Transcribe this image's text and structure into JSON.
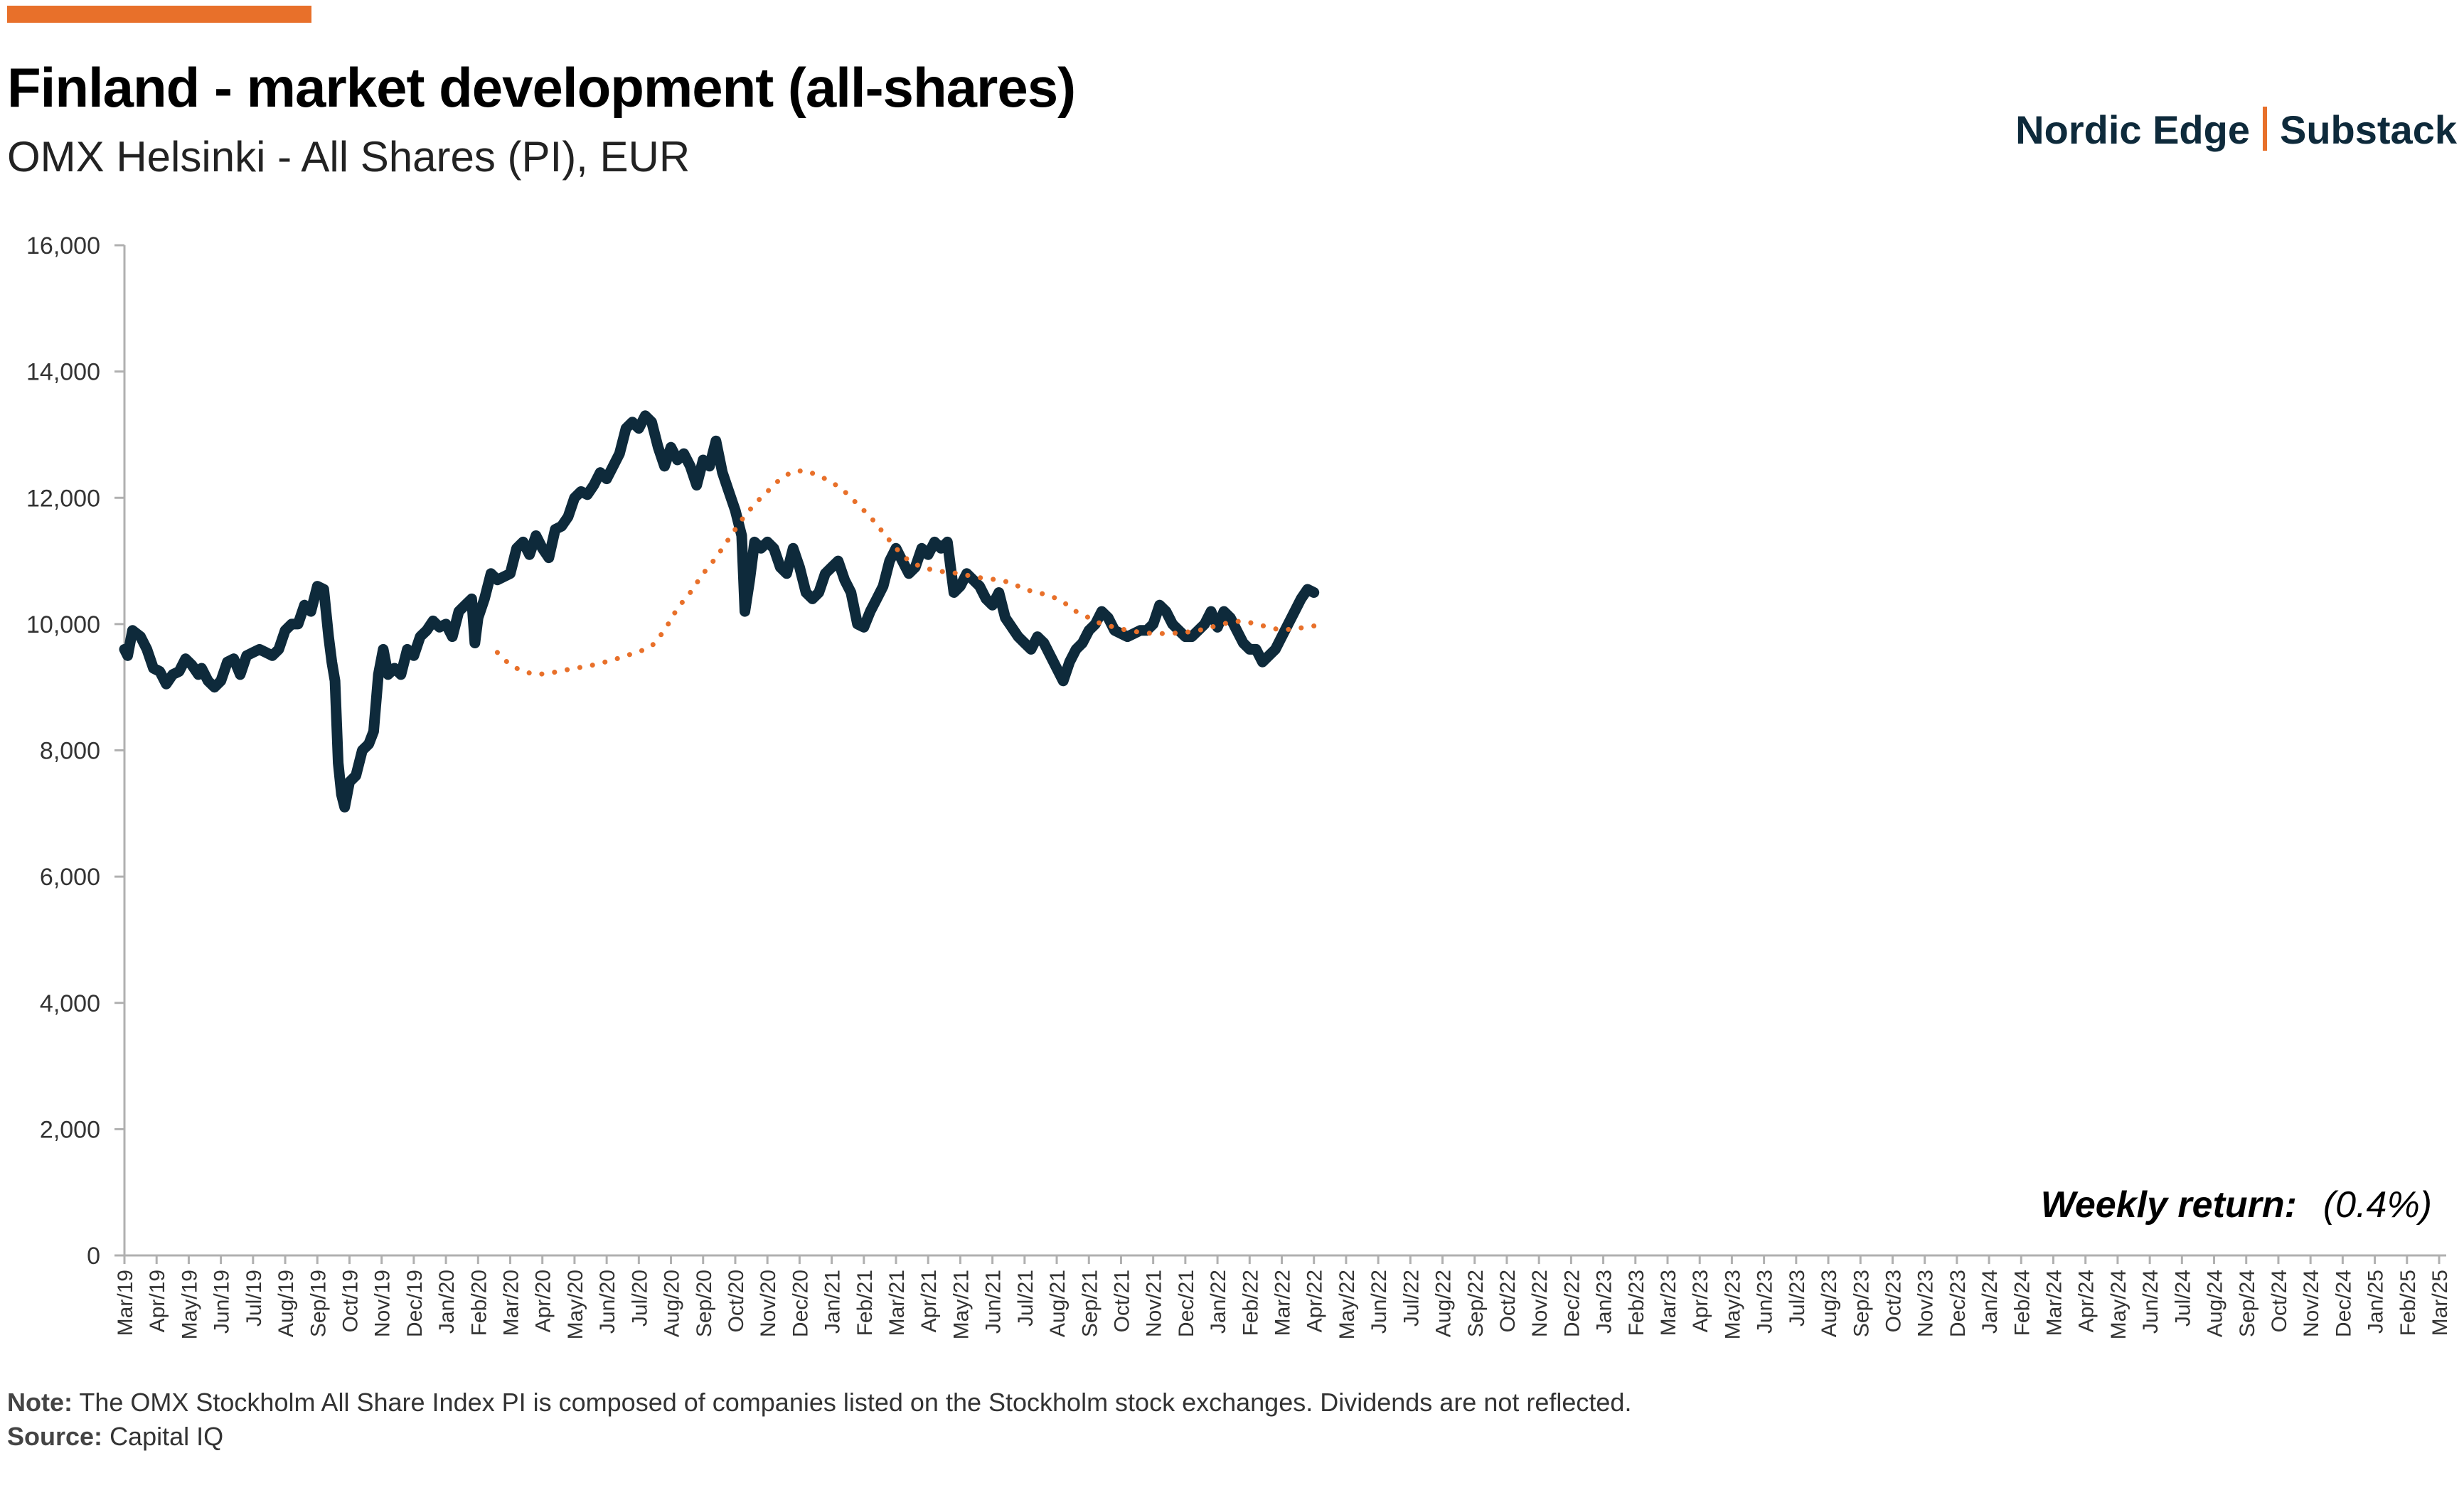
{
  "header": {
    "title": "Finland - market development (all-shares)",
    "subtitle": "OMX Helsinki - All Shares (PI), EUR",
    "brand_left": "Nordic Edge",
    "brand_right": "Substack"
  },
  "colors": {
    "accent": "#E8702A",
    "series_line": "#0E2A3B",
    "trend_line": "#E8702A",
    "axis": "#B0B0B0"
  },
  "annotation": {
    "label": "Weekly return:",
    "value": "(0.4%)"
  },
  "footer": {
    "note_label": "Note:",
    "note_text": "The OMX Stockholm All Share Index PI is composed of companies listed on the Stockholm stock exchanges. Dividends are not reflected.",
    "source_label": "Source:",
    "source_text": "Capital IQ"
  },
  "chart_data": {
    "type": "line",
    "ylim": [
      0,
      16000
    ],
    "yticks": [
      0,
      2000,
      4000,
      6000,
      8000,
      10000,
      12000,
      14000,
      16000
    ],
    "ytick_labels": [
      "0",
      "2,000",
      "4,000",
      "6,000",
      "8,000",
      "10,000",
      "12,000",
      "14,000",
      "16,000"
    ],
    "x_categories": [
      "Mar/19",
      "Apr/19",
      "May/19",
      "Jun/19",
      "Jul/19",
      "Aug/19",
      "Sep/19",
      "Oct/19",
      "Nov/19",
      "Dec/19",
      "Jan/20",
      "Feb/20",
      "Mar/20",
      "Apr/20",
      "May/20",
      "Jun/20",
      "Jul/20",
      "Aug/20",
      "Sep/20",
      "Oct/20",
      "Nov/20",
      "Dec/20",
      "Jan/21",
      "Feb/21",
      "Mar/21",
      "Apr/21",
      "May/21",
      "Jun/21",
      "Jul/21",
      "Aug/21",
      "Sep/21",
      "Oct/21",
      "Nov/21",
      "Dec/21",
      "Jan/22",
      "Feb/22",
      "Mar/22",
      "Apr/22",
      "May/22",
      "Jun/22",
      "Jul/22",
      "Aug/22",
      "Sep/22",
      "Oct/22",
      "Nov/22",
      "Dec/22",
      "Jan/23",
      "Feb/23",
      "Mar/23",
      "Apr/23",
      "May/23",
      "Jun/23",
      "Jul/23",
      "Aug/23",
      "Sep/23",
      "Oct/23",
      "Nov/23",
      "Dec/23",
      "Jan/24",
      "Feb/24",
      "Mar/24",
      "Apr/24",
      "May/24",
      "Jun/24",
      "Jul/24",
      "Aug/24",
      "Sep/24",
      "Oct/24",
      "Nov/24",
      "Dec/24",
      "Jan/25",
      "Feb/25",
      "Mar/25"
    ],
    "series": [
      {
        "style": "solid",
        "points": [
          [
            0,
            9600
          ],
          [
            0.1,
            9500
          ],
          [
            0.25,
            9900
          ],
          [
            0.5,
            9800
          ],
          [
            0.7,
            9600
          ],
          [
            0.9,
            9300
          ],
          [
            1.1,
            9250
          ],
          [
            1.3,
            9050
          ],
          [
            1.5,
            9200
          ],
          [
            1.7,
            9250
          ],
          [
            1.9,
            9450
          ],
          [
            2.1,
            9350
          ],
          [
            2.3,
            9200
          ],
          [
            2.4,
            9300
          ],
          [
            2.6,
            9100
          ],
          [
            2.8,
            9000
          ],
          [
            3.0,
            9100
          ],
          [
            3.2,
            9400
          ],
          [
            3.4,
            9450
          ],
          [
            3.6,
            9200
          ],
          [
            3.8,
            9500
          ],
          [
            4.0,
            9550
          ],
          [
            4.2,
            9600
          ],
          [
            4.4,
            9550
          ],
          [
            4.6,
            9500
          ],
          [
            4.8,
            9600
          ],
          [
            5.0,
            9900
          ],
          [
            5.2,
            10000
          ],
          [
            5.4,
            10000
          ],
          [
            5.6,
            10300
          ],
          [
            5.8,
            10200
          ],
          [
            6.0,
            10600
          ],
          [
            6.2,
            10550
          ],
          [
            6.35,
            9800
          ],
          [
            6.45,
            9400
          ],
          [
            6.55,
            9100
          ],
          [
            6.65,
            7800
          ],
          [
            6.75,
            7300
          ],
          [
            6.85,
            7100
          ],
          [
            7.0,
            7500
          ],
          [
            7.2,
            7600
          ],
          [
            7.4,
            8000
          ],
          [
            7.6,
            8100
          ],
          [
            7.75,
            8300
          ],
          [
            7.9,
            9200
          ],
          [
            8.05,
            9600
          ],
          [
            8.2,
            9200
          ],
          [
            8.4,
            9300
          ],
          [
            8.6,
            9200
          ],
          [
            8.8,
            9600
          ],
          [
            9.0,
            9500
          ],
          [
            9.2,
            9800
          ],
          [
            9.4,
            9900
          ],
          [
            9.6,
            10050
          ],
          [
            9.8,
            9950
          ],
          [
            10.0,
            10000
          ],
          [
            10.2,
            9800
          ],
          [
            10.4,
            10200
          ],
          [
            10.6,
            10300
          ],
          [
            10.8,
            10400
          ],
          [
            10.9,
            9700
          ],
          [
            11.0,
            10100
          ],
          [
            11.2,
            10400
          ],
          [
            11.4,
            10800
          ],
          [
            11.6,
            10700
          ],
          [
            11.8,
            10750
          ],
          [
            12.0,
            10800
          ],
          [
            12.2,
            11200
          ],
          [
            12.4,
            11300
          ],
          [
            12.6,
            11100
          ],
          [
            12.8,
            11400
          ],
          [
            13.0,
            11200
          ],
          [
            13.2,
            11050
          ],
          [
            13.4,
            11500
          ],
          [
            13.6,
            11550
          ],
          [
            13.8,
            11700
          ],
          [
            14.0,
            12000
          ],
          [
            14.2,
            12100
          ],
          [
            14.4,
            12050
          ],
          [
            14.6,
            12200
          ],
          [
            14.8,
            12400
          ],
          [
            15.0,
            12300
          ],
          [
            15.2,
            12500
          ],
          [
            15.4,
            12700
          ],
          [
            15.6,
            13100
          ],
          [
            15.8,
            13200
          ],
          [
            16.0,
            13100
          ],
          [
            16.2,
            13300
          ],
          [
            16.4,
            13200
          ],
          [
            16.6,
            12800
          ],
          [
            16.8,
            12500
          ],
          [
            17.0,
            12800
          ],
          [
            17.2,
            12600
          ],
          [
            17.4,
            12700
          ],
          [
            17.6,
            12500
          ],
          [
            17.8,
            12200
          ],
          [
            18.0,
            12600
          ],
          [
            18.2,
            12500
          ],
          [
            18.4,
            12900
          ],
          [
            18.6,
            12400
          ],
          [
            18.8,
            12100
          ],
          [
            19.0,
            11800
          ],
          [
            19.2,
            11400
          ],
          [
            19.3,
            10200
          ],
          [
            19.45,
            10700
          ],
          [
            19.6,
            11300
          ],
          [
            19.8,
            11200
          ],
          [
            20.0,
            11300
          ],
          [
            20.2,
            11200
          ],
          [
            20.4,
            10900
          ],
          [
            20.6,
            10800
          ],
          [
            20.8,
            11200
          ],
          [
            21.0,
            10900
          ],
          [
            21.2,
            10500
          ],
          [
            21.4,
            10400
          ],
          [
            21.6,
            10500
          ],
          [
            21.8,
            10800
          ],
          [
            22.0,
            10900
          ],
          [
            22.2,
            11000
          ],
          [
            22.4,
            10700
          ],
          [
            22.6,
            10500
          ],
          [
            22.8,
            10000
          ],
          [
            23.0,
            9950
          ],
          [
            23.2,
            10200
          ],
          [
            23.4,
            10400
          ],
          [
            23.6,
            10600
          ],
          [
            23.8,
            11000
          ],
          [
            24.0,
            11200
          ],
          [
            24.2,
            11000
          ],
          [
            24.4,
            10800
          ],
          [
            24.6,
            10900
          ],
          [
            24.8,
            11200
          ],
          [
            25.0,
            11100
          ],
          [
            25.2,
            11300
          ],
          [
            25.4,
            11200
          ],
          [
            25.6,
            11300
          ],
          [
            25.8,
            10500
          ],
          [
            26.0,
            10600
          ],
          [
            26.2,
            10800
          ],
          [
            26.4,
            10700
          ],
          [
            26.6,
            10600
          ],
          [
            26.8,
            10400
          ],
          [
            27.0,
            10300
          ],
          [
            27.2,
            10500
          ],
          [
            27.4,
            10100
          ],
          [
            27.6,
            9950
          ],
          [
            27.8,
            9800
          ],
          [
            28.0,
            9700
          ],
          [
            28.2,
            9600
          ],
          [
            28.4,
            9800
          ],
          [
            28.6,
            9700
          ],
          [
            28.8,
            9500
          ],
          [
            29.0,
            9300
          ],
          [
            29.2,
            9100
          ],
          [
            29.4,
            9400
          ],
          [
            29.6,
            9600
          ],
          [
            29.8,
            9700
          ],
          [
            30.0,
            9900
          ],
          [
            30.2,
            10000
          ],
          [
            30.4,
            10200
          ],
          [
            30.6,
            10100
          ],
          [
            30.8,
            9900
          ],
          [
            31.0,
            9850
          ],
          [
            31.2,
            9800
          ],
          [
            31.4,
            9850
          ],
          [
            31.6,
            9900
          ],
          [
            31.8,
            9900
          ],
          [
            32.0,
            10000
          ],
          [
            32.2,
            10300
          ],
          [
            32.4,
            10200
          ],
          [
            32.6,
            10000
          ],
          [
            32.8,
            9900
          ],
          [
            33.0,
            9800
          ],
          [
            33.2,
            9800
          ],
          [
            33.4,
            9900
          ],
          [
            33.6,
            10000
          ],
          [
            33.8,
            10200
          ],
          [
            34.0,
            9950
          ],
          [
            34.2,
            10200
          ],
          [
            34.4,
            10100
          ],
          [
            34.6,
            9900
          ],
          [
            34.8,
            9700
          ],
          [
            35.0,
            9600
          ],
          [
            35.2,
            9600
          ],
          [
            35.4,
            9400
          ],
          [
            35.6,
            9500
          ],
          [
            35.8,
            9600
          ],
          [
            36.0,
            9800
          ],
          [
            36.2,
            10000
          ],
          [
            36.4,
            10200
          ],
          [
            36.6,
            10400
          ],
          [
            36.8,
            10550
          ],
          [
            37.0,
            10500
          ]
        ]
      },
      {
        "style": "dotted",
        "points": [
          [
            11.6,
            9550
          ],
          [
            12.0,
            9350
          ],
          [
            12.4,
            9250
          ],
          [
            12.8,
            9200
          ],
          [
            13.2,
            9220
          ],
          [
            13.6,
            9260
          ],
          [
            14.0,
            9300
          ],
          [
            14.4,
            9330
          ],
          [
            14.8,
            9380
          ],
          [
            15.2,
            9430
          ],
          [
            15.6,
            9500
          ],
          [
            16.0,
            9560
          ],
          [
            16.4,
            9650
          ],
          [
            16.8,
            9900
          ],
          [
            17.2,
            10250
          ],
          [
            17.6,
            10500
          ],
          [
            18.0,
            10800
          ],
          [
            18.4,
            11050
          ],
          [
            18.8,
            11350
          ],
          [
            19.2,
            11650
          ],
          [
            19.6,
            11900
          ],
          [
            20.0,
            12100
          ],
          [
            20.4,
            12300
          ],
          [
            20.8,
            12420
          ],
          [
            21.2,
            12430
          ],
          [
            21.6,
            12350
          ],
          [
            22.0,
            12250
          ],
          [
            22.4,
            12100
          ],
          [
            22.8,
            11900
          ],
          [
            23.2,
            11700
          ],
          [
            23.6,
            11450
          ],
          [
            24.0,
            11200
          ],
          [
            24.4,
            11000
          ],
          [
            24.8,
            10900
          ],
          [
            25.2,
            10850
          ],
          [
            25.6,
            10820
          ],
          [
            26.0,
            10800
          ],
          [
            26.4,
            10750
          ],
          [
            26.8,
            10720
          ],
          [
            27.2,
            10700
          ],
          [
            27.6,
            10650
          ],
          [
            28.0,
            10550
          ],
          [
            28.4,
            10500
          ],
          [
            28.8,
            10450
          ],
          [
            29.2,
            10350
          ],
          [
            29.6,
            10200
          ],
          [
            30.0,
            10100
          ],
          [
            30.4,
            10000
          ],
          [
            30.8,
            9950
          ],
          [
            31.2,
            9900
          ],
          [
            31.6,
            9870
          ],
          [
            32.0,
            9850
          ],
          [
            32.4,
            9850
          ],
          [
            32.8,
            9860
          ],
          [
            33.2,
            9880
          ],
          [
            33.6,
            9920
          ],
          [
            34.0,
            9980
          ],
          [
            34.4,
            10030
          ],
          [
            34.8,
            10050
          ],
          [
            35.2,
            10000
          ],
          [
            35.6,
            9950
          ],
          [
            36.0,
            9900
          ],
          [
            36.4,
            9930
          ],
          [
            36.8,
            9950
          ],
          [
            37.0,
            9970
          ]
        ]
      }
    ]
  }
}
